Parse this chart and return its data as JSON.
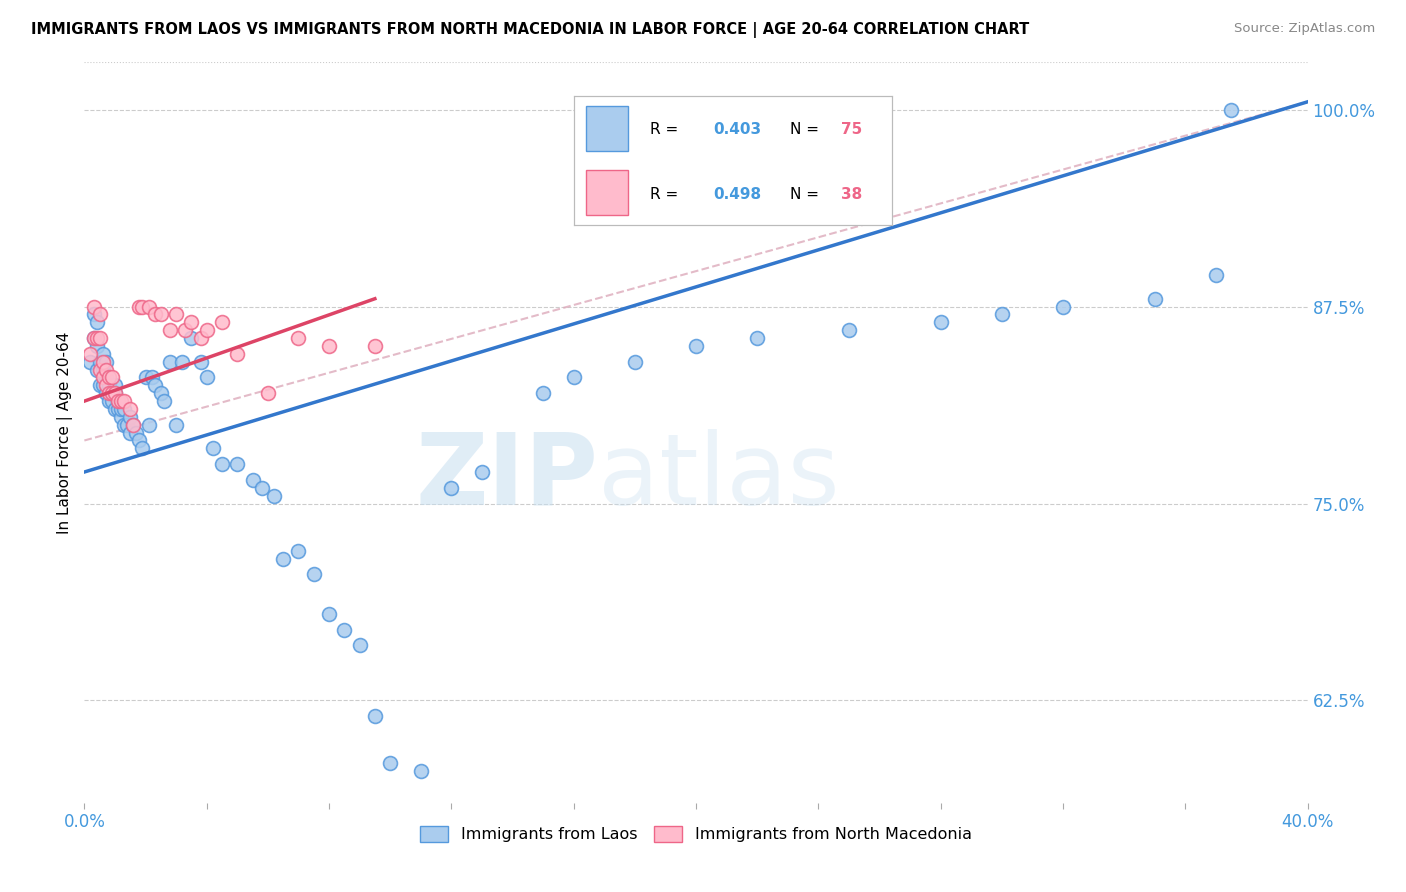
{
  "title": "IMMIGRANTS FROM LAOS VS IMMIGRANTS FROM NORTH MACEDONIA IN LABOR FORCE | AGE 20-64 CORRELATION CHART",
  "source": "Source: ZipAtlas.com",
  "ylabel": "In Labor Force | Age 20-64",
  "xlim": [
    0.0,
    0.4
  ],
  "ylim": [
    0.56,
    1.03
  ],
  "yticks": [
    0.625,
    0.75,
    0.875,
    1.0
  ],
  "ytick_labels": [
    "62.5%",
    "75.0%",
    "87.5%",
    "100.0%"
  ],
  "xticks": [
    0.0,
    0.04,
    0.08,
    0.12,
    0.16,
    0.2,
    0.24,
    0.28,
    0.32,
    0.36,
    0.4
  ],
  "legend_r_laos": "0.403",
  "legend_n_laos": "75",
  "legend_r_mac": "0.498",
  "legend_n_mac": "38",
  "color_laos_fill": "#aaccee",
  "color_laos_edge": "#5599dd",
  "color_mac_fill": "#ffbbcc",
  "color_mac_edge": "#ee6688",
  "color_laos_line": "#3377cc",
  "color_mac_line": "#dd4466",
  "color_dash_line": "#ddaabb",
  "color_axis_blue": "#4499dd",
  "color_grid": "#cccccc",
  "background_color": "#ffffff",
  "laos_x": [
    0.002,
    0.003,
    0.003,
    0.004,
    0.004,
    0.004,
    0.005,
    0.005,
    0.006,
    0.006,
    0.006,
    0.007,
    0.007,
    0.007,
    0.008,
    0.008,
    0.009,
    0.009,
    0.01,
    0.01,
    0.01,
    0.011,
    0.011,
    0.012,
    0.012,
    0.013,
    0.013,
    0.014,
    0.015,
    0.015,
    0.016,
    0.017,
    0.018,
    0.019,
    0.02,
    0.021,
    0.022,
    0.023,
    0.025,
    0.026,
    0.028,
    0.03,
    0.032,
    0.035,
    0.038,
    0.04,
    0.042,
    0.045,
    0.05,
    0.055,
    0.058,
    0.062,
    0.065,
    0.07,
    0.075,
    0.08,
    0.085,
    0.09,
    0.095,
    0.1,
    0.11,
    0.12,
    0.13,
    0.15,
    0.16,
    0.18,
    0.2,
    0.22,
    0.25,
    0.28,
    0.3,
    0.32,
    0.35,
    0.37,
    0.375
  ],
  "laos_y": [
    0.84,
    0.855,
    0.87,
    0.835,
    0.85,
    0.865,
    0.825,
    0.84,
    0.825,
    0.835,
    0.845,
    0.82,
    0.83,
    0.84,
    0.815,
    0.825,
    0.815,
    0.82,
    0.81,
    0.82,
    0.825,
    0.81,
    0.815,
    0.805,
    0.81,
    0.8,
    0.81,
    0.8,
    0.795,
    0.805,
    0.8,
    0.795,
    0.79,
    0.785,
    0.83,
    0.8,
    0.83,
    0.825,
    0.82,
    0.815,
    0.84,
    0.8,
    0.84,
    0.855,
    0.84,
    0.83,
    0.785,
    0.775,
    0.775,
    0.765,
    0.76,
    0.755,
    0.715,
    0.72,
    0.705,
    0.68,
    0.67,
    0.66,
    0.615,
    0.585,
    0.58,
    0.76,
    0.77,
    0.82,
    0.83,
    0.84,
    0.85,
    0.855,
    0.86,
    0.865,
    0.87,
    0.875,
    0.88,
    0.895,
    1.0
  ],
  "mac_x": [
    0.002,
    0.003,
    0.003,
    0.004,
    0.005,
    0.005,
    0.005,
    0.006,
    0.006,
    0.007,
    0.007,
    0.008,
    0.008,
    0.009,
    0.009,
    0.01,
    0.011,
    0.012,
    0.013,
    0.015,
    0.016,
    0.018,
    0.019,
    0.021,
    0.023,
    0.025,
    0.028,
    0.03,
    0.033,
    0.035,
    0.038,
    0.04,
    0.045,
    0.05,
    0.06,
    0.07,
    0.08,
    0.095
  ],
  "mac_y": [
    0.845,
    0.855,
    0.875,
    0.855,
    0.835,
    0.855,
    0.87,
    0.83,
    0.84,
    0.825,
    0.835,
    0.82,
    0.83,
    0.82,
    0.83,
    0.82,
    0.815,
    0.815,
    0.815,
    0.81,
    0.8,
    0.875,
    0.875,
    0.875,
    0.87,
    0.87,
    0.86,
    0.87,
    0.86,
    0.865,
    0.855,
    0.86,
    0.865,
    0.845,
    0.82,
    0.855,
    0.85,
    0.85
  ],
  "laos_line_x": [
    0.0,
    0.4
  ],
  "laos_line_y": [
    0.77,
    1.005
  ],
  "mac_line_x": [
    0.0,
    0.095
  ],
  "mac_line_y": [
    0.815,
    0.88
  ],
  "dash_line_x": [
    0.0,
    0.4
  ],
  "dash_line_y": [
    0.79,
    1.005
  ]
}
